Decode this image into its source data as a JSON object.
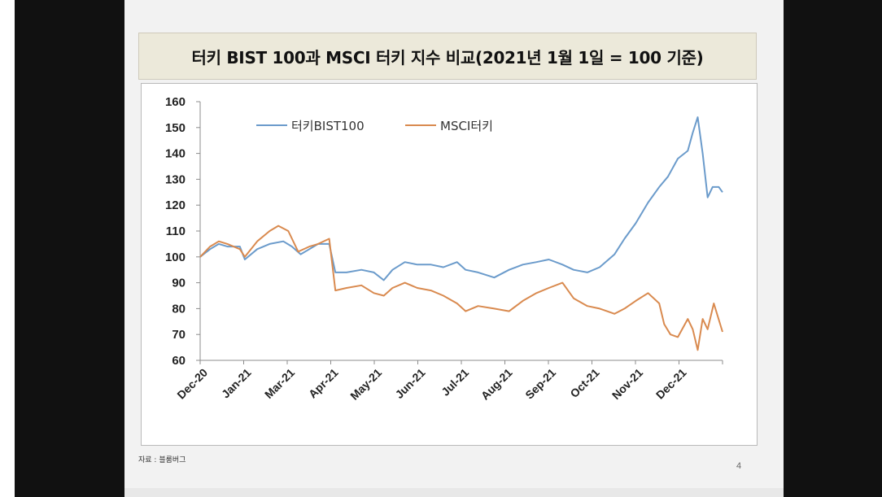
{
  "slide": {
    "title": "터키 BIST 100과 MSCI 터키 지수 비교(2021년 1월 1일 = 100 기준)",
    "source": "자료 : 블룸버그",
    "page_number": "4"
  },
  "colors": {
    "bist": "#6b9bcb",
    "msci": "#d98a4f",
    "axis": "#8c8c8c"
  },
  "chart_data": {
    "type": "line",
    "title": "터키 BIST 100과 MSCI 터키 지수 비교(2021년 1월 1일 = 100 기준)",
    "xlabel": "",
    "ylabel": "",
    "ylim": [
      60,
      160
    ],
    "yticks": [
      "60",
      "70",
      "80",
      "90",
      "100",
      "110",
      "120",
      "130",
      "140",
      "150",
      "160"
    ],
    "x_tick_labels": [
      "Dec-20",
      "Jan-21",
      "Mar-21",
      "Apr-21",
      "May-21",
      "Jun-21",
      "Jul-21",
      "Aug-21",
      "Sep-21",
      "Oct-21",
      "Nov-21",
      "Dec-21"
    ],
    "grid": false,
    "legend": {
      "position": "top-center",
      "entries": [
        "터키BIST100",
        "MSCI터키"
      ]
    },
    "series": [
      {
        "name": "터키BIST100",
        "color": "#6b9bcb",
        "points": [
          [
            "2020-12-31",
            100
          ],
          [
            "2021-01-08",
            103
          ],
          [
            "2021-01-15",
            105
          ],
          [
            "2021-01-22",
            104
          ],
          [
            "2021-02-01",
            104
          ],
          [
            "2021-02-05",
            99
          ],
          [
            "2021-02-15",
            103
          ],
          [
            "2021-02-25",
            105
          ],
          [
            "2021-03-08",
            106
          ],
          [
            "2021-03-15",
            104
          ],
          [
            "2021-03-22",
            101
          ],
          [
            "2021-03-29",
            103
          ],
          [
            "2021-04-05",
            105
          ],
          [
            "2021-04-14",
            105
          ],
          [
            "2021-04-19",
            94
          ],
          [
            "2021-04-28",
            94
          ],
          [
            "2021-05-10",
            95
          ],
          [
            "2021-05-20",
            94
          ],
          [
            "2021-05-28",
            91
          ],
          [
            "2021-06-04",
            95
          ],
          [
            "2021-06-14",
            98
          ],
          [
            "2021-06-24",
            97
          ],
          [
            "2021-07-05",
            97
          ],
          [
            "2021-07-15",
            96
          ],
          [
            "2021-07-26",
            98
          ],
          [
            "2021-08-02",
            95
          ],
          [
            "2021-08-12",
            94
          ],
          [
            "2021-08-25",
            92
          ],
          [
            "2021-09-06",
            95
          ],
          [
            "2021-09-17",
            97
          ],
          [
            "2021-09-28",
            98
          ],
          [
            "2021-10-08",
            99
          ],
          [
            "2021-10-19",
            97
          ],
          [
            "2021-10-28",
            95
          ],
          [
            "2021-11-08",
            94
          ],
          [
            "2021-11-18",
            96
          ],
          [
            "2021-11-30",
            101
          ],
          [
            "2021-12-08",
            107
          ],
          [
            "2021-12-17",
            113
          ],
          [
            "2021-12-27",
            121
          ],
          [
            "2022-01-05",
            127
          ],
          [
            "2022-01-12",
            131
          ],
          [
            "2022-01-20",
            138
          ],
          [
            "2022-01-28",
            141
          ],
          [
            "2022-02-01",
            148
          ],
          [
            "2022-02-05",
            154
          ],
          [
            "2022-02-09",
            140
          ],
          [
            "2022-02-13",
            123
          ],
          [
            "2022-02-17",
            127
          ],
          [
            "2022-02-22",
            127
          ],
          [
            "2022-02-25",
            125
          ]
        ]
      },
      {
        "name": "MSCI터키",
        "color": "#d98a4f",
        "points": [
          [
            "2020-12-31",
            100
          ],
          [
            "2021-01-08",
            104
          ],
          [
            "2021-01-15",
            106
          ],
          [
            "2021-01-22",
            105
          ],
          [
            "2021-02-01",
            103
          ],
          [
            "2021-02-05",
            100
          ],
          [
            "2021-02-15",
            106
          ],
          [
            "2021-02-25",
            110
          ],
          [
            "2021-03-04",
            112
          ],
          [
            "2021-03-12",
            110
          ],
          [
            "2021-03-20",
            102
          ],
          [
            "2021-03-29",
            104
          ],
          [
            "2021-04-05",
            105
          ],
          [
            "2021-04-14",
            107
          ],
          [
            "2021-04-19",
            87
          ],
          [
            "2021-04-28",
            88
          ],
          [
            "2021-05-10",
            89
          ],
          [
            "2021-05-20",
            86
          ],
          [
            "2021-05-28",
            85
          ],
          [
            "2021-06-04",
            88
          ],
          [
            "2021-06-14",
            90
          ],
          [
            "2021-06-24",
            88
          ],
          [
            "2021-07-05",
            87
          ],
          [
            "2021-07-15",
            85
          ],
          [
            "2021-07-26",
            82
          ],
          [
            "2021-08-02",
            79
          ],
          [
            "2021-08-12",
            81
          ],
          [
            "2021-08-25",
            80
          ],
          [
            "2021-09-06",
            79
          ],
          [
            "2021-09-17",
            83
          ],
          [
            "2021-09-28",
            86
          ],
          [
            "2021-10-08",
            88
          ],
          [
            "2021-10-19",
            90
          ],
          [
            "2021-10-28",
            84
          ],
          [
            "2021-11-08",
            81
          ],
          [
            "2021-11-18",
            80
          ],
          [
            "2021-11-30",
            78
          ],
          [
            "2021-12-08",
            80
          ],
          [
            "2021-12-17",
            83
          ],
          [
            "2021-12-27",
            86
          ],
          [
            "2022-01-05",
            82
          ],
          [
            "2022-01-09",
            74
          ],
          [
            "2022-01-14",
            70
          ],
          [
            "2022-01-20",
            69
          ],
          [
            "2022-01-28",
            76
          ],
          [
            "2022-02-01",
            72
          ],
          [
            "2022-02-05",
            64
          ],
          [
            "2022-02-09",
            76
          ],
          [
            "2022-02-13",
            72
          ],
          [
            "2022-02-18",
            82
          ],
          [
            "2022-02-25",
            71
          ]
        ]
      }
    ]
  }
}
